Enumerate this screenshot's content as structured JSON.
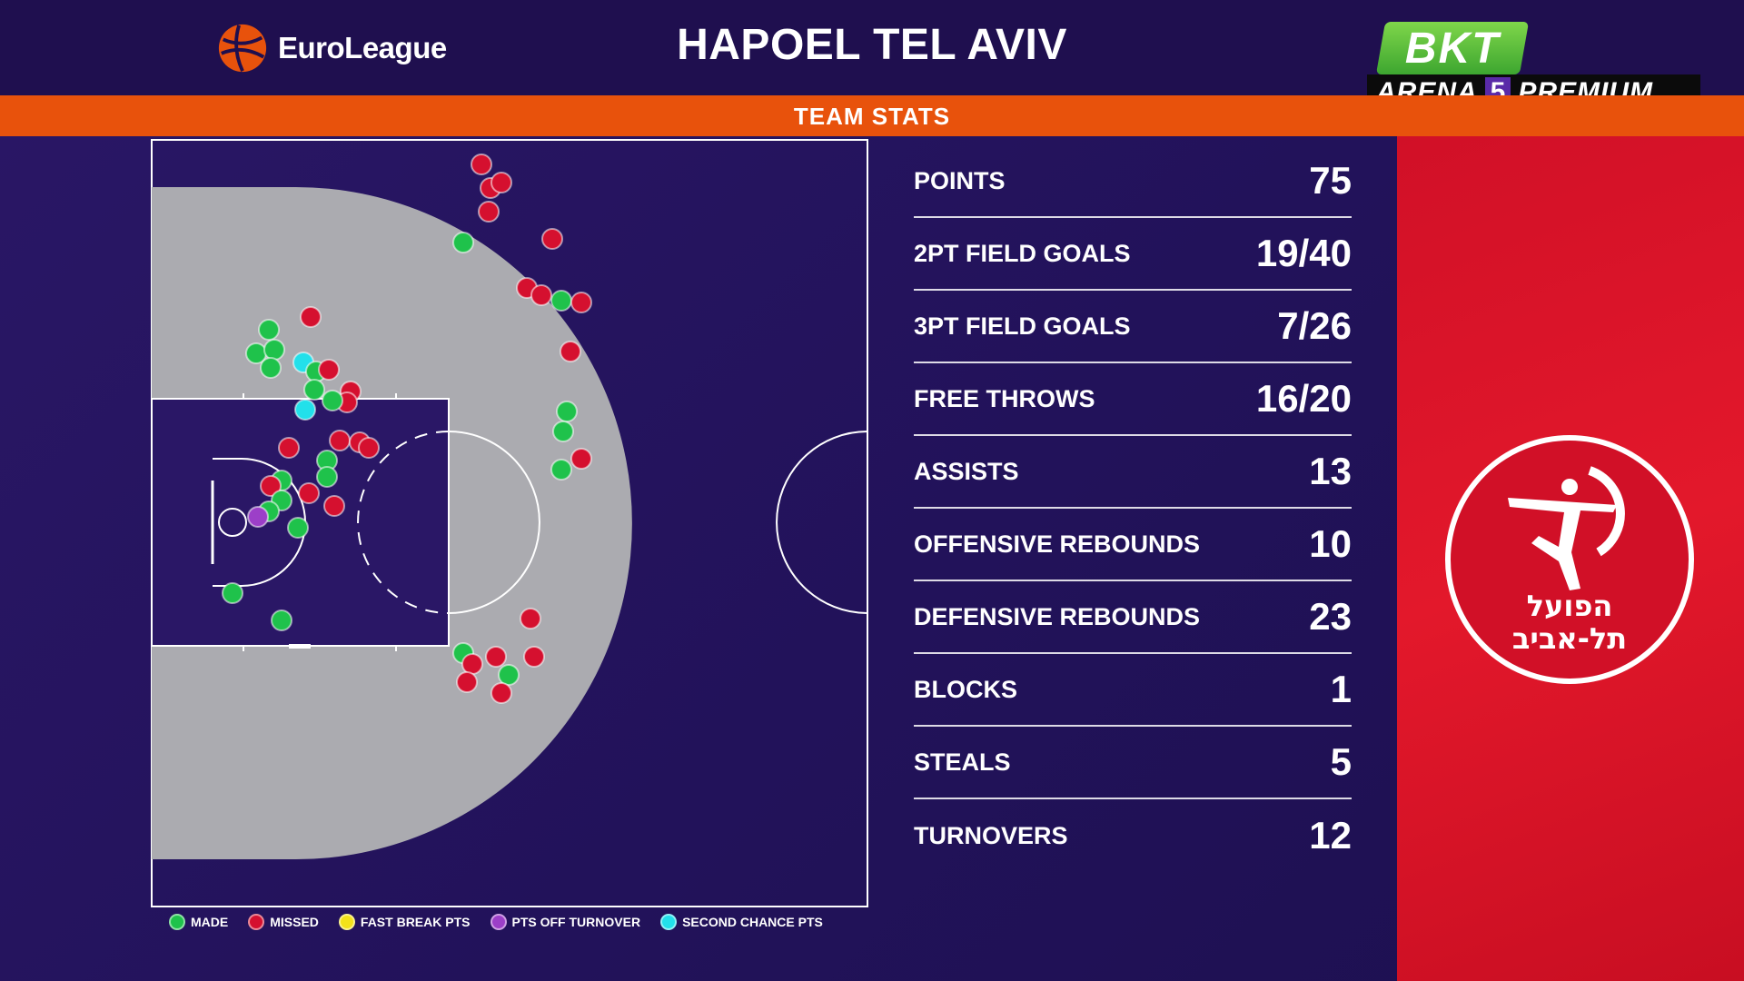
{
  "header": {
    "league_logo_text": "EuroLeague",
    "team_name": "HAPOEL TEL AVIV",
    "broadcaster": {
      "bkt": "BKT",
      "arena": "ARENA",
      "channel_number": "5",
      "tier": "PREMIUM"
    }
  },
  "banner": {
    "label": "TEAM STATS"
  },
  "colors": {
    "made": "#1fc24b",
    "missed": "#d5102f",
    "fast_break": "#f3e21a",
    "off_turnover": "#9c3fc8",
    "second_chance": "#22e0ea",
    "accent_orange": "#e8520c",
    "club_red": "#d11027"
  },
  "legend": [
    {
      "label": "MADE",
      "color": "#1fc24b"
    },
    {
      "label": "MISSED",
      "color": "#d5102f"
    },
    {
      "label": "FAST BREAK PTS",
      "color": "#f3e21a"
    },
    {
      "label": "PTS OFF TURNOVER",
      "color": "#9c3fc8"
    },
    {
      "label": "SECOND CHANCE PTS",
      "color": "#22e0ea"
    }
  ],
  "stats": [
    {
      "label": "POINTS",
      "value": "75"
    },
    {
      "label": "2PT FIELD GOALS",
      "value": "19/40"
    },
    {
      "label": "3PT FIELD GOALS",
      "value": "7/26"
    },
    {
      "label": "FREE THROWS",
      "value": "16/20"
    },
    {
      "label": "ASSISTS",
      "value": "13"
    },
    {
      "label": "OFFENSIVE REBOUNDS",
      "value": "10"
    },
    {
      "label": "DEFENSIVE REBOUNDS",
      "value": "23"
    },
    {
      "label": "BLOCKS",
      "value": "1"
    },
    {
      "label": "STEALS",
      "value": "5"
    },
    {
      "label": "TURNOVERS",
      "value": "12"
    }
  ],
  "club_logo": {
    "line1": "הפועל",
    "line2": "תל-אביב"
  }
}
